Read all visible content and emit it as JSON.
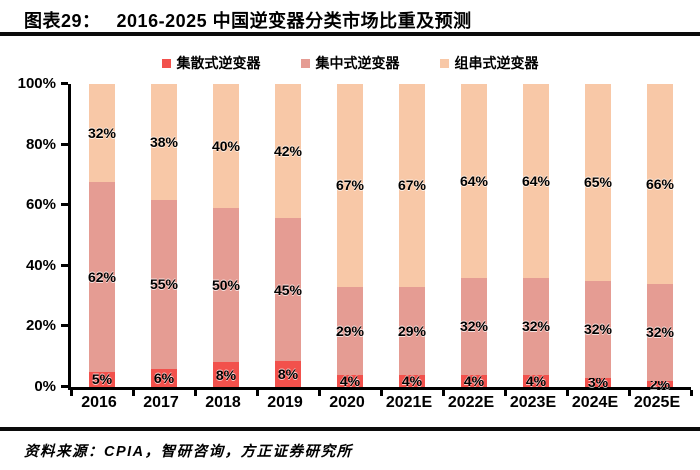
{
  "header": {
    "label": "图表29：",
    "title": "2016-2025 中国逆变器分类市场比重及预测"
  },
  "footer": {
    "source": "资料来源：CPIA，智研咨询，方正证券研究所"
  },
  "colors": {
    "series_red": "#F2514C",
    "series_salmon": "#E59C93",
    "series_peach": "#F8C8A7",
    "axis": "#000000",
    "rule": "#0B0B0B"
  },
  "chart_data": {
    "type": "bar",
    "stacked": true,
    "percent_stack": true,
    "title": "2016-2025 中国逆变器分类市场比重及预测",
    "categories": [
      "2016",
      "2017",
      "2018",
      "2019",
      "2020",
      "2021E",
      "2022E",
      "2023E",
      "2024E",
      "2025E"
    ],
    "series": [
      {
        "name": "集散式逆变器",
        "color": "#F2514C",
        "values": [
          5,
          6,
          8,
          8,
          4,
          4,
          4,
          4,
          3,
          2
        ]
      },
      {
        "name": "集中式逆变器",
        "color": "#E59C93",
        "values": [
          62,
          55,
          50,
          45,
          29,
          29,
          32,
          32,
          32,
          32
        ]
      },
      {
        "name": "组串式逆变器",
        "color": "#F8C8A7",
        "values": [
          32,
          38,
          40,
          42,
          67,
          67,
          64,
          64,
          65,
          66
        ]
      }
    ],
    "value_label_suffix": "%",
    "yticks": [
      "0%",
      "20%",
      "40%",
      "60%",
      "80%",
      "100%"
    ],
    "ylim": [
      0,
      100
    ],
    "xlabel": "",
    "ylabel": "",
    "legend_position": "top",
    "grid": false
  }
}
